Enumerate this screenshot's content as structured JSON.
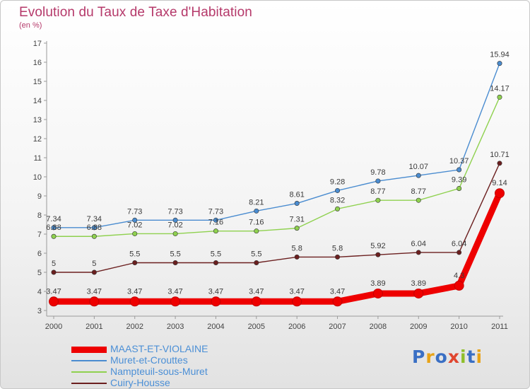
{
  "header": {
    "title": "Evolution du Taux de Taxe d'Habitation",
    "unit": "(en %)"
  },
  "logo": {
    "text": "Proxiti",
    "colors": [
      "#3a6fc4",
      "#e8a317",
      "#3a6fc4",
      "#e0462f",
      "#8fbf2a",
      "#3a6fc4",
      "#e8a317"
    ]
  },
  "chart_data": {
    "type": "line",
    "title": "Evolution du Taux de Taxe d'Habitation",
    "ylabel": "(en %)",
    "xlabel": "",
    "x": [
      "2000",
      "2001",
      "2002",
      "2003",
      "2004",
      "2005",
      "2006",
      "2007",
      "2008",
      "2009",
      "2010",
      "2011"
    ],
    "y_ticks": [
      "3",
      "4",
      "5",
      "6",
      "7",
      "8",
      "9",
      "10",
      "11",
      "12",
      "13",
      "14",
      "15",
      "16",
      "17"
    ],
    "ylim": [
      3,
      17
    ],
    "grid": false,
    "legend_position": "bottom-left",
    "series": [
      {
        "name": "MAAST-ET-VIOLAINE",
        "color": "#ee0000",
        "values": [
          3.47,
          3.47,
          3.47,
          3.47,
          3.47,
          3.47,
          3.47,
          3.47,
          3.89,
          3.89,
          4.3,
          9.14
        ],
        "labels": [
          "3.47",
          "3.47",
          "3.47",
          "3.47",
          "3.47",
          "3.47",
          "3.47",
          "3.47",
          "3.89",
          "3.89",
          "4.3",
          "9.14"
        ]
      },
      {
        "name": "Muret-et-Crouttes",
        "color": "#4a8cd0",
        "values": [
          7.34,
          7.34,
          7.73,
          7.73,
          7.73,
          8.21,
          8.61,
          9.28,
          9.78,
          10.07,
          10.37,
          15.94
        ],
        "labels": [
          "7.34",
          "7.34",
          "7.73",
          "7.73",
          "7.73",
          "8.21",
          "8.61",
          "9.28",
          "9.78",
          "10.07",
          "10.37",
          "15.94"
        ]
      },
      {
        "name": "Nampteuil-sous-Muret",
        "color": "#8fd14f",
        "values": [
          6.88,
          6.88,
          7.02,
          7.02,
          7.16,
          7.16,
          7.31,
          8.32,
          8.77,
          8.77,
          9.39,
          14.17
        ],
        "labels": [
          "6.88",
          "6.88",
          "7.02",
          "7.02",
          "7.16",
          "7.16",
          "7.31",
          "8.32",
          "8.77",
          "8.77",
          "9.39",
          "14.17"
        ]
      },
      {
        "name": "Cuiry-Housse",
        "color": "#6b1f1f",
        "values": [
          5,
          5,
          5.5,
          5.5,
          5.5,
          5.5,
          5.8,
          5.8,
          5.92,
          6.04,
          6.04,
          10.71
        ],
        "labels": [
          "5",
          "5",
          "5.5",
          "5.5",
          "5.5",
          "5.5",
          "5.8",
          "5.8",
          "5.92",
          "6.04",
          "6.04",
          "10.71"
        ]
      }
    ]
  }
}
